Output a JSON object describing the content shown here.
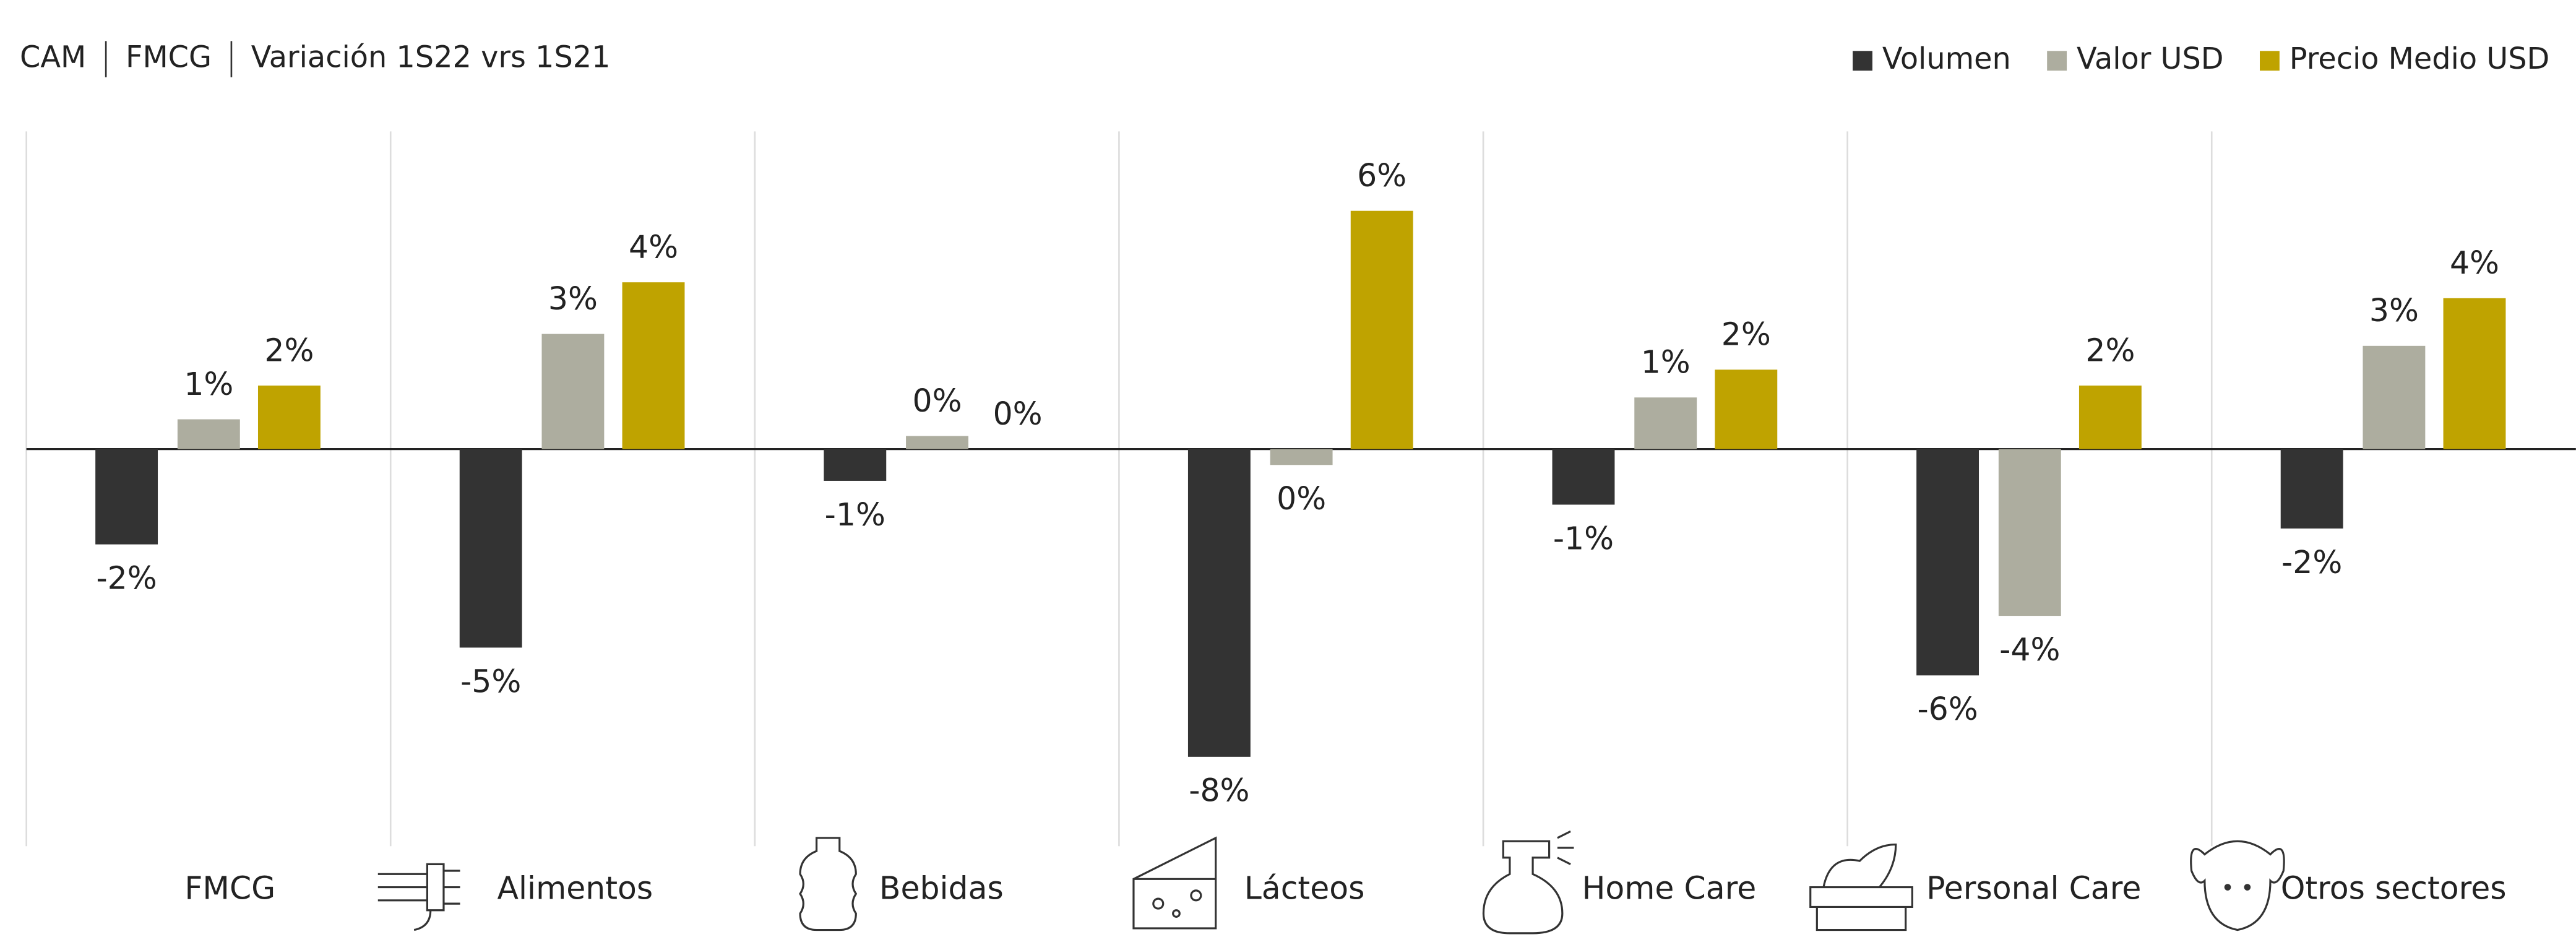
{
  "chart_data": {
    "type": "bar",
    "title_parts": [
      "CAM",
      "FMCG",
      "Variación 1S22  vrs 1S21"
    ],
    "categories": [
      "FMCG",
      "Alimentos",
      "Bebidas",
      "Lácteos",
      "Home Care",
      "Personal Care",
      "Otros sectores"
    ],
    "series": [
      {
        "name": "Volumen",
        "color": "#333333",
        "values": [
          -2.4,
          -5.0,
          -0.8,
          -7.75,
          -1.4,
          -5.7,
          -2.0
        ],
        "value_labels": [
          "-2%",
          "-5%",
          "-1%",
          "-8%",
          "-1%",
          "-6%",
          "-2%"
        ]
      },
      {
        "name": "Valor USD",
        "color": "#adad9f",
        "values": [
          0.75,
          2.9,
          0.33,
          -0.4,
          1.3,
          -4.2,
          2.6
        ],
        "value_labels": [
          "1%",
          "3%",
          "0%",
          "0%",
          "1%",
          "-4%",
          "3%"
        ]
      },
      {
        "name": "Precio Medio USD",
        "color": "#bfa300",
        "values": [
          1.6,
          4.2,
          0,
          6.0,
          2.0,
          1.6,
          3.8
        ],
        "value_labels": [
          "2%",
          "4%",
          "0%",
          "6%",
          "2%",
          "2%",
          "4%"
        ]
      }
    ],
    "ylim": [
      -10,
      8
    ],
    "legend": "top-right"
  }
}
